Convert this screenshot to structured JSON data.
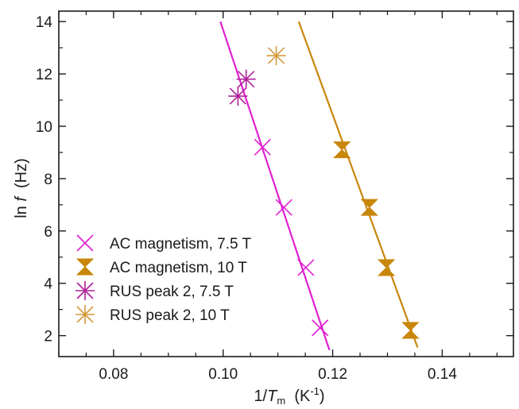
{
  "chart_data": {
    "type": "scatter",
    "xlabel": {
      "prefix": "1/",
      "italic": "T",
      "sub": "m",
      "unit_prefix": "(K",
      "unit_sup": "-1",
      "unit_suffix": ")"
    },
    "ylabel": {
      "prefix": "ln ",
      "italic": "f",
      "unit": "(Hz)"
    },
    "xlim": [
      0.07,
      0.153
    ],
    "ylim": [
      1.2,
      14.4
    ],
    "xticks": [
      0.08,
      0.1,
      0.12,
      0.14
    ],
    "xtick_labels": [
      "0.08",
      "0.10",
      "0.12",
      "0.14"
    ],
    "yticks": [
      2,
      4,
      6,
      8,
      10,
      12,
      14
    ],
    "ytick_labels": [
      "2",
      "4",
      "6",
      "8",
      "10",
      "12",
      "14"
    ],
    "grid": false,
    "legend_position": "bottom-left",
    "colors": {
      "magenta": "#e020d0",
      "dark_magenta": "#b0209a",
      "gold": "#c8860a",
      "gold_light": "#d29a3c"
    },
    "series": [
      {
        "name": "AC magnetism, 7.5 T",
        "marker": "x-cross",
        "color": "#e020d0",
        "points": [
          [
            0.1072,
            9.2
          ],
          [
            0.1111,
            6.9
          ],
          [
            0.1151,
            4.6
          ],
          [
            0.1177,
            2.3
          ]
        ]
      },
      {
        "name": "AC magnetism, 10 T",
        "marker": "hourglass",
        "color": "#c8860a",
        "points": [
          [
            0.1217,
            9.1
          ],
          [
            0.1267,
            6.9
          ],
          [
            0.1298,
            4.6
          ],
          [
            0.1342,
            2.2
          ]
        ]
      },
      {
        "name": "RUS peak 2, 7.5 T",
        "marker": "asterisk",
        "color": "#b0209a",
        "points": [
          [
            0.1027,
            11.15
          ],
          [
            0.1042,
            11.8
          ]
        ]
      },
      {
        "name": "RUS peak 2, 10 T",
        "marker": "asterisk",
        "color": "#d29a3c",
        "points": [
          [
            0.1097,
            12.7
          ]
        ]
      }
    ],
    "fit_lines": [
      {
        "series": "7.5 T",
        "color": "#e020d0",
        "x1": 0.0995,
        "y1": 14.0,
        "x2": 0.1194,
        "y2": 1.45
      },
      {
        "series": "10 T",
        "color": "#c8860a",
        "x1": 0.1138,
        "y1": 14.0,
        "x2": 0.1355,
        "y2": 1.55
      }
    ]
  }
}
